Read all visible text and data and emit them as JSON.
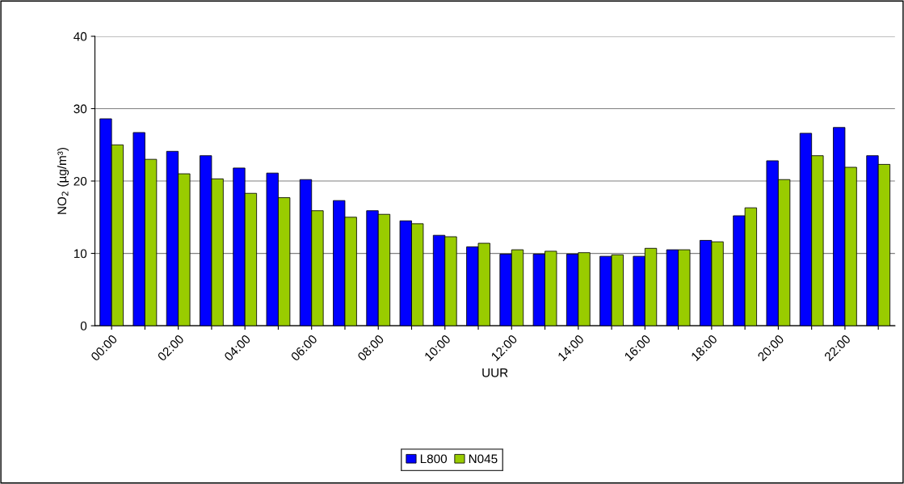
{
  "chart_data": {
    "type": "bar",
    "xlabel": "UUR",
    "ylabel": "NO$_{2}$ (µg/m³)",
    "categories": [
      "00:00",
      null,
      "02:00",
      null,
      "04:00",
      null,
      "06:00",
      null,
      "08:00",
      null,
      "10:00",
      null,
      "12:00",
      null,
      "14:00",
      null,
      "16:00",
      null,
      "18:00",
      null,
      "20:00",
      null,
      "22:00",
      null
    ],
    "series": [
      {
        "name": "L800",
        "color": "#0000ff",
        "values": [
          28.6,
          26.7,
          24.1,
          23.5,
          21.8,
          21.1,
          20.2,
          17.3,
          15.9,
          14.5,
          12.5,
          10.9,
          9.9,
          9.9,
          9.9,
          9.6,
          9.6,
          10.5,
          11.8,
          15.2,
          22.8,
          26.6,
          27.4,
          23.5
        ]
      },
      {
        "name": "N045",
        "color": "#99cc00",
        "values": [
          25.0,
          23.0,
          21.0,
          20.3,
          18.3,
          17.7,
          15.9,
          15.0,
          15.4,
          14.1,
          12.3,
          11.4,
          10.5,
          10.3,
          10.1,
          9.8,
          10.7,
          10.5,
          11.6,
          16.3,
          20.2,
          23.5,
          21.9,
          22.3
        ]
      }
    ],
    "ylim": [
      0,
      40
    ],
    "yticks": [
      0,
      10,
      20,
      30,
      40
    ],
    "grid": "y",
    "legend": "bottom"
  }
}
